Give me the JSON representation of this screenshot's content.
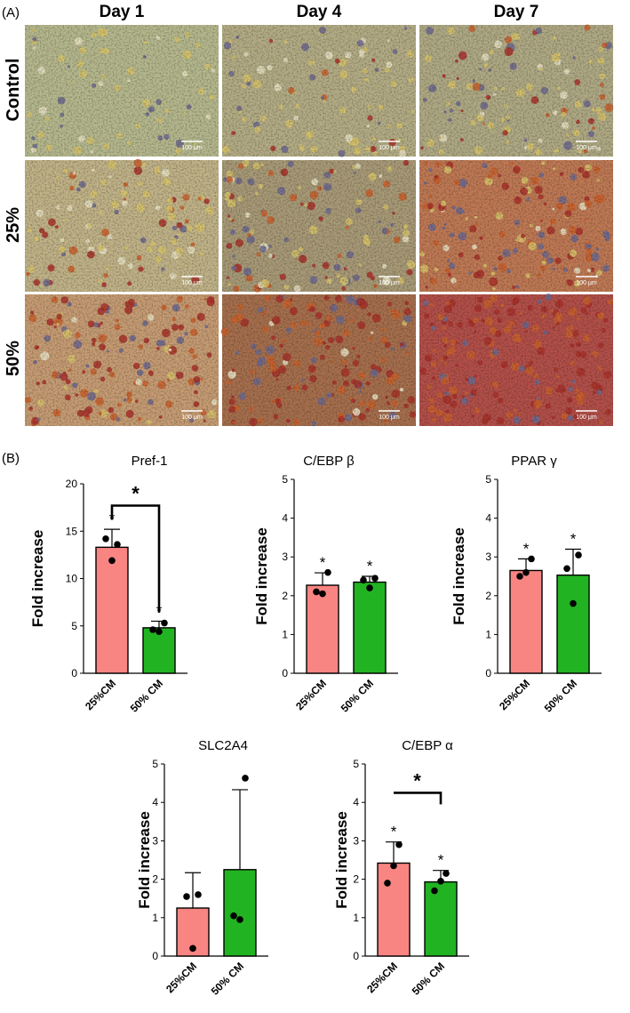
{
  "panel_a": {
    "label": "(A)",
    "columns": [
      "Day 1",
      "Day 4",
      "Day 7"
    ],
    "rows": [
      "Control",
      "25%",
      "50%"
    ],
    "scale_label": "100 μm",
    "image_colors": [
      [
        "#b6b98e",
        "#b4ad86",
        "#b0aa85"
      ],
      [
        "#c2b489",
        "#a99b78",
        "#c07a55"
      ],
      [
        "#c79d74",
        "#a7704e",
        "#b4504a"
      ]
    ]
  },
  "panel_b": {
    "label": "(B)"
  },
  "colors": {
    "bar_25": "#f88582",
    "bar_50": "#22b322"
  },
  "chart_data": [
    {
      "type": "bar",
      "title": "Pref-1",
      "ylabel": "Fold increase",
      "ylim": [
        0,
        20
      ],
      "yticks": [
        0,
        5,
        10,
        15,
        20
      ],
      "categories": [
        "25%CM",
        "50% CM"
      ],
      "values": [
        13.3,
        4.8
      ],
      "errors": [
        1.9,
        0.7
      ],
      "points": [
        [
          13.6,
          14.2,
          11.9
        ],
        [
          5.3,
          4.6,
          4.4
        ]
      ],
      "bar_stars": [
        "*",
        "*"
      ],
      "bracket": "*"
    },
    {
      "type": "bar",
      "title": "C/EBP β",
      "ylabel": "Fold increase",
      "ylim": [
        0,
        5
      ],
      "yticks": [
        0,
        1,
        2,
        3,
        4,
        5
      ],
      "categories": [
        "25%CM",
        "50% CM"
      ],
      "values": [
        2.27,
        2.35
      ],
      "errors": [
        0.32,
        0.15
      ],
      "points": [
        [
          2.6,
          2.1,
          2.05
        ],
        [
          2.45,
          2.4,
          2.2
        ]
      ],
      "bar_stars": [
        "*",
        "*"
      ],
      "bracket": ""
    },
    {
      "type": "bar",
      "title": "PPAR γ",
      "ylabel": "Fold increase",
      "ylim": [
        0,
        5
      ],
      "yticks": [
        0,
        1,
        2,
        3,
        4,
        5
      ],
      "categories": [
        "25%CM",
        "50% CM"
      ],
      "values": [
        2.65,
        2.53
      ],
      "errors": [
        0.3,
        0.67
      ],
      "points": [
        [
          2.95,
          2.5,
          2.6
        ],
        [
          3.05,
          2.7,
          1.8
        ]
      ],
      "bar_stars": [
        "*",
        "*"
      ],
      "bracket": ""
    },
    {
      "type": "bar",
      "title": "SLC2A4",
      "ylabel": "Fold increase",
      "ylim": [
        0,
        5
      ],
      "yticks": [
        0,
        1,
        2,
        3,
        4,
        5
      ],
      "categories": [
        "25%CM",
        "50% CM"
      ],
      "values": [
        1.25,
        2.25
      ],
      "errors": [
        0.92,
        2.08
      ],
      "points": [
        [
          1.6,
          1.55,
          0.2
        ],
        [
          4.63,
          1.05,
          0.95
        ]
      ],
      "bar_stars": [
        "",
        ""
      ],
      "bracket": ""
    },
    {
      "type": "bar",
      "title": "C/EBP α",
      "ylabel": "Fold increase",
      "ylim": [
        0,
        5
      ],
      "yticks": [
        0,
        1,
        2,
        3,
        4,
        5
      ],
      "categories": [
        "25%CM",
        "50% CM"
      ],
      "values": [
        2.42,
        1.93
      ],
      "errors": [
        0.55,
        0.3
      ],
      "points": [
        [
          2.9,
          1.9,
          2.35
        ],
        [
          2.15,
          1.7,
          1.95
        ]
      ],
      "bar_stars": [
        "*",
        "*"
      ],
      "bracket": "*"
    }
  ]
}
